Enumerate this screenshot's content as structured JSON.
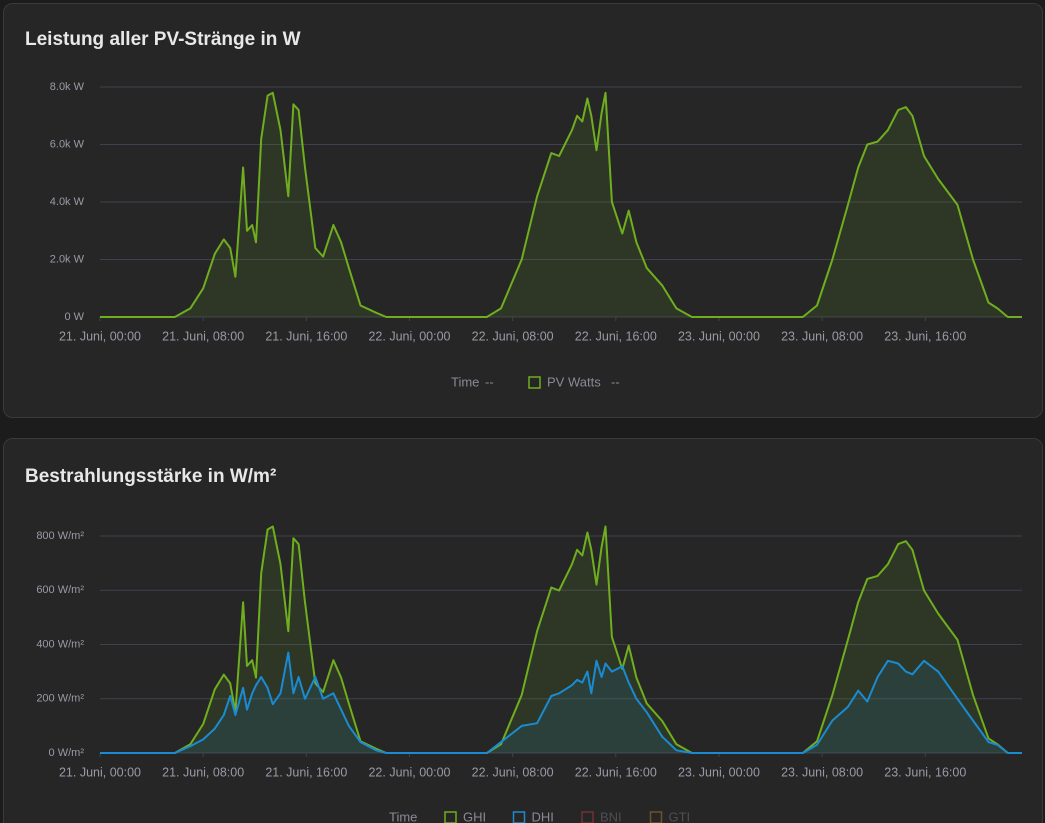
{
  "chart_data": [
    {
      "type": "line",
      "title": "Leistung aller PV-Stränge in W",
      "x": [
        0,
        5.8,
        7.0,
        8.0,
        8.9,
        9.6,
        10.1,
        10.5,
        11.1,
        11.4,
        11.8,
        12.1,
        12.5,
        13.0,
        13.4,
        14.0,
        14.6,
        15.0,
        15.4,
        15.9,
        16.7,
        17.3,
        18.1,
        18.7,
        19.3,
        20.2,
        21.4,
        22.2,
        30.0,
        31.1,
        32.7,
        33.9,
        35.0,
        35.6,
        36.6,
        37.0,
        37.4,
        37.8,
        38.1,
        38.5,
        38.9,
        39.2,
        39.7,
        40.5,
        41.0,
        41.6,
        42.4,
        43.6,
        44.7,
        45.9,
        54.5,
        55.6,
        56.8,
        58.0,
        58.8,
        59.5,
        60.3,
        61.1,
        61.9,
        62.5,
        63.0,
        63.9,
        65.0,
        66.5,
        67.7,
        68.9,
        69.6,
        70.4,
        71.5
      ],
      "series": [
        {
          "name": "PV Watts",
          "color": "#6fae1e",
          "values": [
            0,
            0,
            300,
            1000,
            2200,
            2700,
            2400,
            1400,
            5200,
            3000,
            3200,
            2600,
            6200,
            7700,
            7800,
            6500,
            4200,
            7400,
            7200,
            5200,
            2400,
            2100,
            3200,
            2600,
            1700,
            400,
            150,
            0,
            0,
            300,
            2000,
            4200,
            5700,
            5600,
            6500,
            7000,
            6800,
            7600,
            7000,
            5800,
            7100,
            7800,
            4000,
            2900,
            3700,
            2600,
            1700,
            1100,
            300,
            0,
            0,
            400,
            2000,
            3900,
            5200,
            6000,
            6100,
            6500,
            7200,
            7300,
            7000,
            5600,
            4800,
            3900,
            2000,
            500,
            300,
            0,
            0
          ]
        }
      ],
      "xlim": [
        0,
        71.5
      ],
      "xticks": [
        {
          "value": 0,
          "label": "21. Juni, 00:00"
        },
        {
          "value": 8,
          "label": "21. Juni, 08:00"
        },
        {
          "value": 16,
          "label": "21. Juni, 16:00"
        },
        {
          "value": 24,
          "label": "22. Juni, 00:00"
        },
        {
          "value": 32,
          "label": "22. Juni, 08:00"
        },
        {
          "value": 40,
          "label": "22. Juni, 16:00"
        },
        {
          "value": 48,
          "label": "23. Juni, 00:00"
        },
        {
          "value": 56,
          "label": "23. Juni, 08:00"
        },
        {
          "value": 64,
          "label": "23. Juni, 16:00"
        }
      ],
      "ylim": [
        0,
        8000
      ],
      "yticks": [
        {
          "value": 0,
          "label": "0 W"
        },
        {
          "value": 2000,
          "label": "2.0k W"
        },
        {
          "value": 4000,
          "label": "4.0k W"
        },
        {
          "value": 6000,
          "label": "6.0k W"
        },
        {
          "value": 8000,
          "label": "8.0k W"
        }
      ],
      "grid": true,
      "time_label": "Time",
      "legend_value": "--"
    },
    {
      "type": "line",
      "title": "Bestrahlungsstärke in W/m²",
      "x": [
        0,
        5.8,
        7.0,
        8.0,
        8.9,
        9.6,
        10.1,
        10.5,
        11.1,
        11.4,
        11.8,
        12.1,
        12.5,
        13.0,
        13.4,
        14.0,
        14.6,
        15.0,
        15.4,
        15.9,
        16.7,
        17.3,
        18.1,
        18.7,
        19.3,
        20.2,
        21.4,
        22.2,
        30.0,
        31.1,
        32.7,
        33.9,
        35.0,
        35.6,
        36.6,
        37.0,
        37.4,
        37.8,
        38.1,
        38.5,
        38.9,
        39.2,
        39.7,
        40.5,
        41.0,
        41.6,
        42.4,
        43.6,
        44.7,
        45.9,
        54.5,
        55.6,
        56.8,
        58.0,
        58.8,
        59.5,
        60.3,
        61.1,
        61.9,
        62.5,
        63.0,
        63.9,
        65.0,
        66.5,
        67.7,
        68.9,
        69.6,
        70.4,
        71.5
      ],
      "series": [
        {
          "name": "GHI",
          "color": "#6fae1e",
          "values": [
            0,
            0,
            32,
            107,
            235,
            289,
            257,
            150,
            556,
            321,
            342,
            278,
            663,
            824,
            835,
            696,
            449,
            792,
            770,
            556,
            257,
            225,
            342,
            278,
            182,
            43,
            16,
            0,
            0,
            32,
            214,
            449,
            610,
            599,
            696,
            749,
            728,
            813,
            749,
            621,
            760,
            835,
            428,
            310,
            396,
            278,
            182,
            118,
            32,
            0,
            0,
            43,
            214,
            417,
            556,
            642,
            653,
            696,
            770,
            781,
            749,
            599,
            514,
            417,
            214,
            54,
            32,
            0,
            0
          ]
        },
        {
          "name": "DHI",
          "color": "#1a8bd2",
          "values": [
            0,
            0,
            25,
            50,
            90,
            140,
            210,
            140,
            240,
            160,
            220,
            250,
            280,
            240,
            180,
            220,
            370,
            220,
            280,
            200,
            280,
            200,
            220,
            160,
            100,
            40,
            10,
            0,
            0,
            40,
            100,
            110,
            210,
            220,
            250,
            270,
            260,
            300,
            220,
            340,
            280,
            330,
            300,
            320,
            260,
            200,
            150,
            60,
            10,
            0,
            0,
            30,
            120,
            170,
            230,
            190,
            280,
            340,
            330,
            300,
            290,
            340,
            300,
            200,
            120,
            40,
            30,
            0,
            0
          ]
        }
      ],
      "hidden_series": [
        {
          "name": "BNI",
          "color": "#a33a3a"
        },
        {
          "name": "GTI",
          "color": "#a0702a"
        }
      ],
      "xlim": [
        0,
        71.5
      ],
      "xticks": [
        {
          "value": 0,
          "label": "21. Juni, 00:00"
        },
        {
          "value": 8,
          "label": "21. Juni, 08:00"
        },
        {
          "value": 16,
          "label": "21. Juni, 16:00"
        },
        {
          "value": 24,
          "label": "22. Juni, 00:00"
        },
        {
          "value": 32,
          "label": "22. Juni, 08:00"
        },
        {
          "value": 40,
          "label": "22. Juni, 16:00"
        },
        {
          "value": 48,
          "label": "23. Juni, 00:00"
        },
        {
          "value": 56,
          "label": "23. Juni, 08:00"
        },
        {
          "value": 64,
          "label": "23. Juni, 16:00"
        }
      ],
      "ylim": [
        0,
        800
      ],
      "yticks": [
        {
          "value": 0,
          "label": "0 W/m²"
        },
        {
          "value": 200,
          "label": "200 W/m²"
        },
        {
          "value": 400,
          "label": "400 W/m²"
        },
        {
          "value": 600,
          "label": "600 W/m²"
        },
        {
          "value": 800,
          "label": "800 W/m²"
        }
      ],
      "grid": true,
      "time_label": "Time"
    }
  ]
}
